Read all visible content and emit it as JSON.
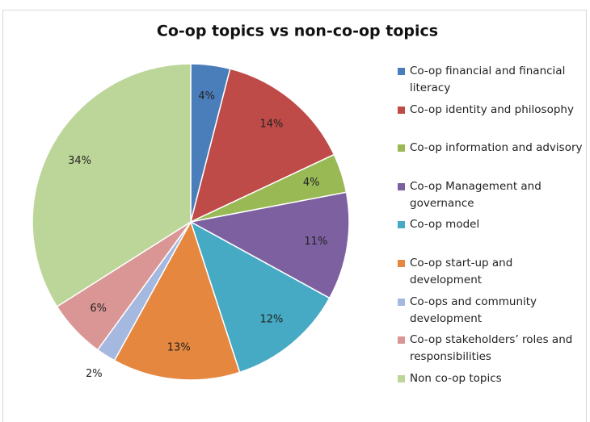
{
  "chart_data": {
    "type": "pie",
    "title": "Co-op topics vs non-co-op topics",
    "categories": [
      "Co-op financial and financial literacy",
      "Co-op identity and philosophy",
      "Co-op information and advisory",
      "Co-op Management and governance",
      "Co-op model",
      "Co-op start-up and development",
      "Co-ops and community development",
      "Co-op stakeholders’ roles and responsibilities",
      "Non co-op topics"
    ],
    "values": [
      4,
      14,
      4,
      11,
      12,
      13,
      2,
      6,
      34
    ],
    "value_labels": [
      "4%",
      "14%",
      "4%",
      "11%",
      "12%",
      "13%",
      "2%",
      "6%",
      "34%"
    ],
    "colors": [
      "#4a7ebb",
      "#be4b48",
      "#98b954",
      "#7d60a0",
      "#46aac5",
      "#e5873e",
      "#a5b8e0",
      "#d99694",
      "#bcd69a"
    ],
    "legend": "right"
  }
}
